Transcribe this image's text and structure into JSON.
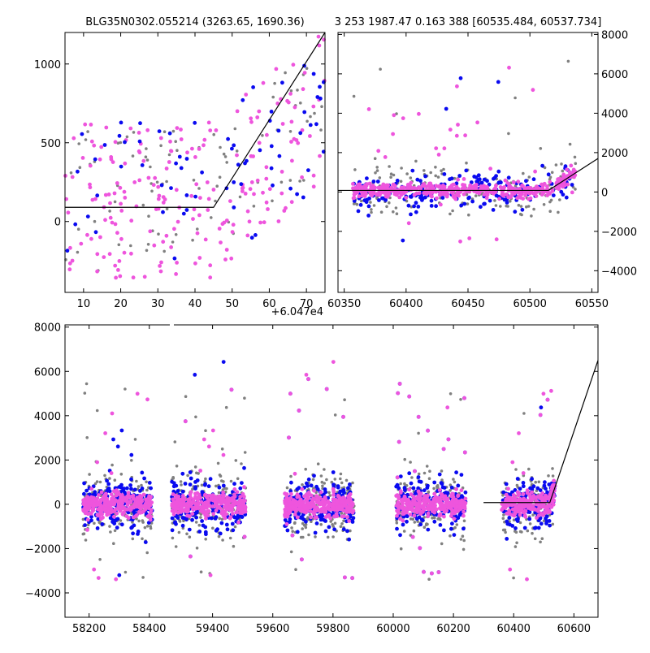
{
  "colors": {
    "gray": "#808080",
    "blue": "#0a0af0",
    "pink": "#ee55dd",
    "model": "#000000"
  },
  "chart_data": [
    {
      "type": "scatter",
      "id": "panel-top-left",
      "title": "BLG35N0302.055214 (3263.65, 1690.36)",
      "x_offset_text": "+6.047e4",
      "xlim": [
        5,
        75
      ],
      "ylim": [
        -450,
        1200
      ],
      "x_ticks": [
        10,
        20,
        30,
        40,
        50,
        60,
        70
      ],
      "x_tick_labels": [
        "10",
        "20",
        "30",
        "40",
        "50",
        "60",
        "70"
      ],
      "y_ticks": [
        0,
        500,
        1000
      ],
      "y_tick_labels": [
        "0",
        "500",
        "1000"
      ],
      "y_axis_side": "left",
      "model_line": {
        "x": [
          5,
          45,
          75
        ],
        "y": [
          90,
          90,
          1200
        ]
      },
      "point_model": {
        "base": 90,
        "t0": 45,
        "slope": 37,
        "spread": 500
      },
      "series_counts": {
        "gray": 90,
        "pink": 210,
        "blue": 70
      }
    },
    {
      "type": "scatter",
      "id": "panel-top-right",
      "title": "3 253 1987.47 0.163 388 [60535.484, 60537.734]",
      "xlim": [
        60345,
        60555
      ],
      "ylim": [
        -5100,
        8100
      ],
      "x_ticks": [
        60350,
        60400,
        60450,
        60500,
        60550
      ],
      "x_tick_labels": [
        "60350",
        "60400",
        "60450",
        "60500",
        "60550"
      ],
      "y_ticks": [
        -4000,
        -2000,
        0,
        2000,
        4000,
        6000,
        8000
      ],
      "y_tick_labels": [
        "−4000",
        "−2000",
        "0",
        "2000",
        "4000",
        "6000",
        "8000"
      ],
      "y_axis_side": "right",
      "model_line": {
        "x": [
          60345,
          60515,
          60555
        ],
        "y": [
          80,
          80,
          1700
        ]
      },
      "point_model": {
        "base": 80,
        "t0": 60515,
        "slope": 40,
        "spread": 300,
        "x_min": 60357,
        "x_max": 60537
      },
      "series_counts": {
        "gray": 200,
        "pink": 480,
        "blue": 200
      }
    },
    {
      "type": "scatter",
      "id": "panel-bottom",
      "title": "",
      "xlim": [
        58120,
        60680
      ],
      "ylim": [
        -5100,
        8100
      ],
      "x_ticks": [
        58200,
        58400,
        59400,
        59600,
        59800,
        60000,
        60200,
        60400,
        60600
      ],
      "x_tick_labels": [
        "58200",
        "58400",
        "59400",
        "59600",
        "59800",
        "60000",
        "60200",
        "60400",
        "60600"
      ],
      "y_ticks": [
        -4000,
        -2000,
        0,
        2000,
        4000,
        6000,
        8000
      ],
      "y_tick_labels": [
        "−4000",
        "−2000",
        "0",
        "2000",
        "4000",
        "6000",
        "8000"
      ],
      "y_axis_side": "left",
      "axis_break_between": [
        58470,
        59260
      ],
      "model_line": {
        "x": [
          60300,
          60520,
          60680
        ],
        "y": [
          80,
          80,
          6500
        ]
      },
      "seasons": [
        {
          "x_range": [
            58180,
            58410
          ],
          "n": 700
        },
        {
          "x_range": [
            59265,
            59510
          ],
          "n": 700
        },
        {
          "x_range": [
            59640,
            59870
          ],
          "n": 700
        },
        {
          "x_range": [
            60010,
            60240
          ],
          "n": 650
        },
        {
          "x_range": [
            60360,
            60537
          ],
          "n": 500
        }
      ]
    }
  ]
}
